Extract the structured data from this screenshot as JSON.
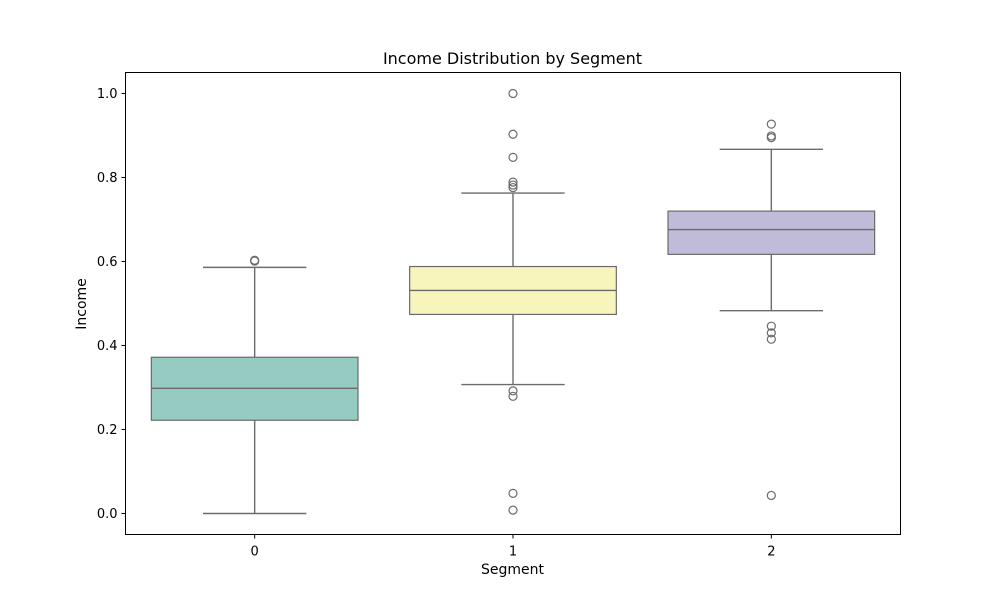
{
  "chart_data": {
    "type": "box",
    "title": "Income Distribution by Segment",
    "xlabel": "Segment",
    "ylabel": "Income",
    "categories": [
      "0",
      "1",
      "2"
    ],
    "ylim": [
      -0.05,
      1.05
    ],
    "yticks": [
      0.0,
      0.2,
      0.4,
      0.6,
      0.8,
      1.0
    ],
    "ytick_labels": [
      "0.0",
      "0.2",
      "0.4",
      "0.6",
      "0.8",
      "1.0"
    ],
    "grid": false,
    "boxes": [
      {
        "category": "0",
        "color": "#96cbc1",
        "whisker_low": 0.0,
        "q1": 0.222,
        "median": 0.298,
        "q3": 0.372,
        "whisker_high": 0.586,
        "outliers": [
          0.601,
          0.603
        ]
      },
      {
        "category": "1",
        "color": "#f7f5bb",
        "whisker_low": 0.307,
        "q1": 0.474,
        "median": 0.531,
        "q3": 0.588,
        "whisker_high": 0.763,
        "outliers": [
          0.008,
          0.048,
          0.279,
          0.292,
          0.776,
          0.782,
          0.789,
          0.848,
          0.903,
          1.0
        ]
      },
      {
        "category": "2",
        "color": "#bfbbd8",
        "whisker_low": 0.483,
        "q1": 0.617,
        "median": 0.676,
        "q3": 0.72,
        "whisker_high": 0.867,
        "outliers": [
          0.043,
          0.415,
          0.43,
          0.446,
          0.895,
          0.899,
          0.927
        ]
      }
    ]
  }
}
